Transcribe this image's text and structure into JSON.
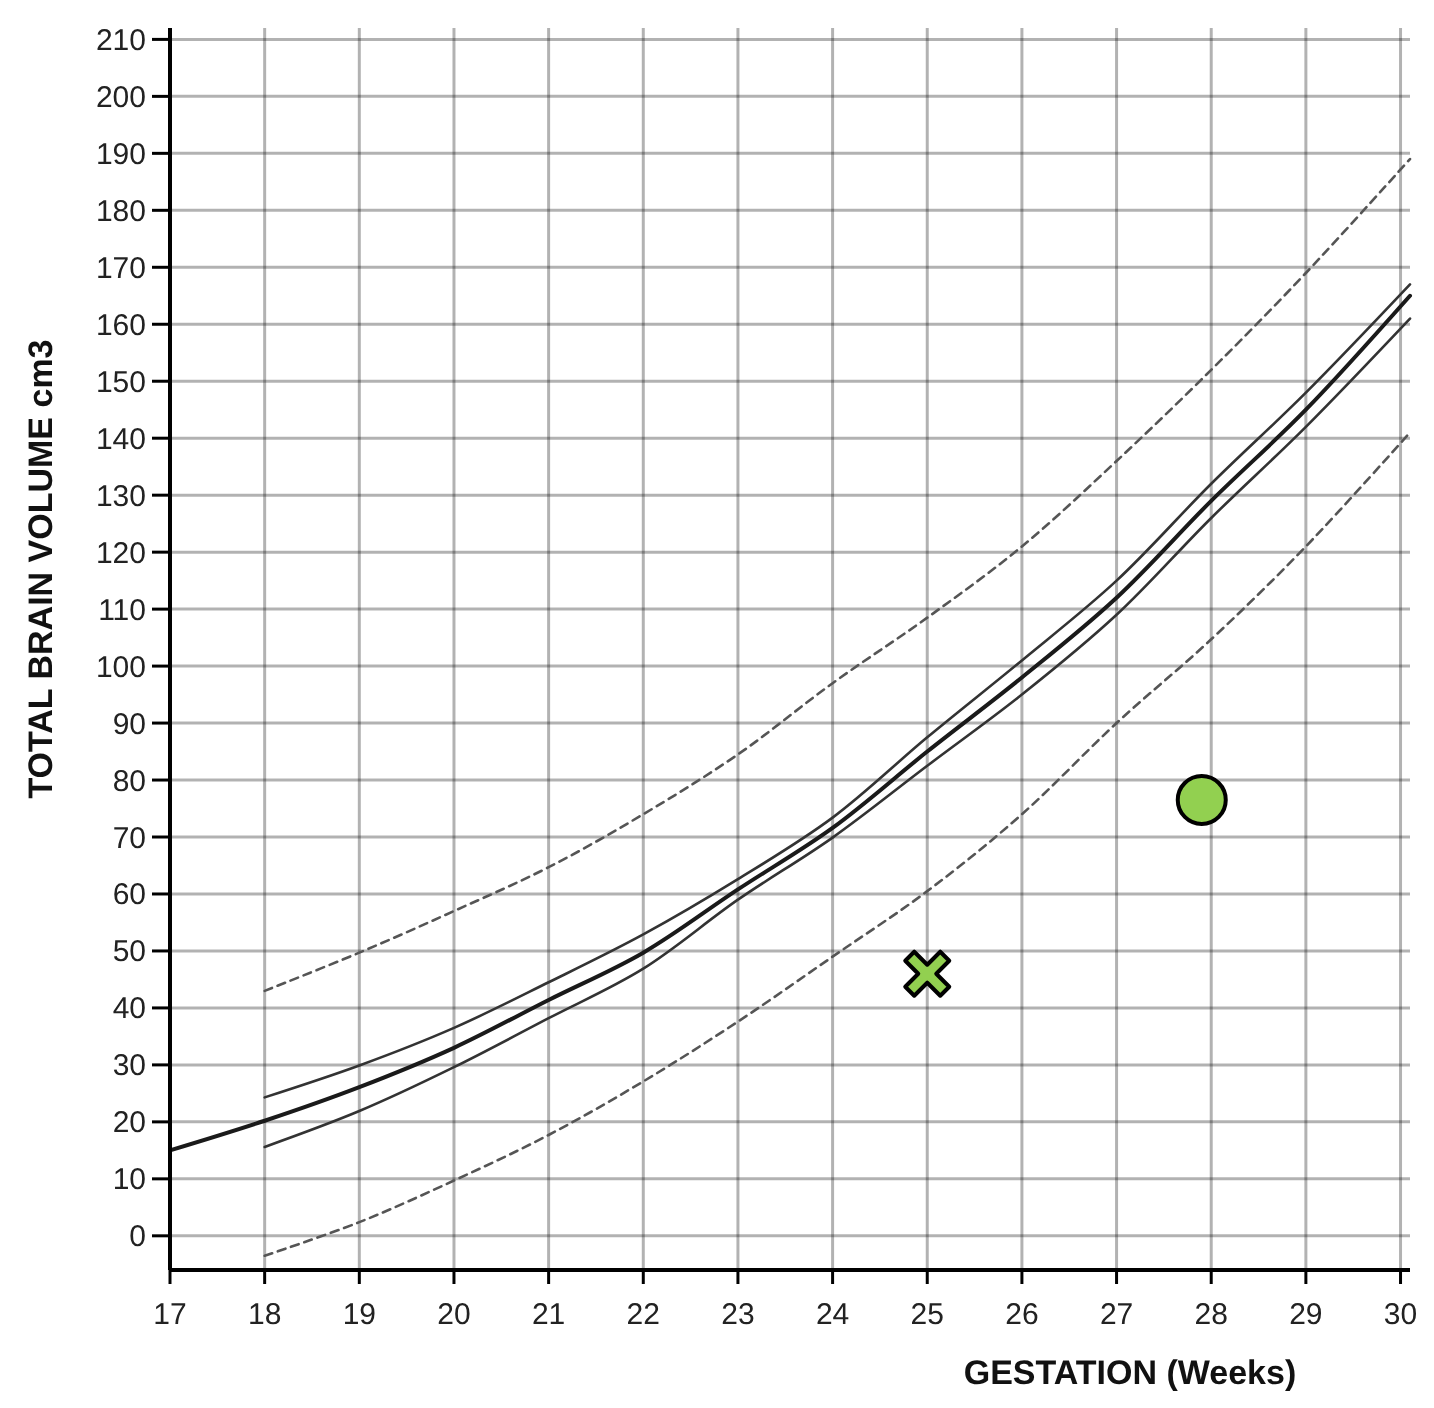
{
  "chart_data": {
    "type": "line",
    "xlabel": "GESTATION (Weeks)",
    "ylabel": "TOTAL BRAIN VOLUME cm3",
    "xlim": [
      17,
      30.1
    ],
    "ylim": [
      -6,
      212
    ],
    "xticks": [
      17,
      18,
      19,
      20,
      21,
      22,
      23,
      24,
      25,
      26,
      27,
      28,
      29,
      30
    ],
    "yticks": [
      0,
      10,
      20,
      30,
      40,
      50,
      60,
      70,
      80,
      90,
      100,
      110,
      120,
      130,
      140,
      150,
      160,
      170,
      180,
      190,
      200,
      210
    ],
    "grid": true,
    "series": [
      {
        "color": "#1a1a1a",
        "line_style": "solid",
        "marker": "none",
        "x": [
          17,
          18,
          19,
          20,
          21,
          22,
          23,
          24,
          25,
          26,
          27,
          28,
          29,
          30.1
        ],
        "values": [
          15,
          20.2,
          26.1,
          33,
          41.4,
          49.7,
          60.8,
          71.6,
          85,
          98,
          112,
          129,
          145,
          165
        ]
      },
      {
        "color": "#333333",
        "line_style": "solid",
        "marker": "none",
        "x": [
          18,
          19,
          20,
          21,
          22,
          23,
          24,
          25,
          26,
          27,
          28,
          29,
          30.1
        ],
        "values": [
          24.3,
          29.9,
          36.5,
          44.5,
          52.9,
          62.6,
          73.4,
          87.5,
          101,
          115,
          132,
          148,
          167
        ]
      },
      {
        "color": "#333333",
        "line_style": "solid",
        "marker": "none",
        "x": [
          18,
          19,
          20,
          21,
          22,
          23,
          24,
          25,
          26,
          27,
          28,
          29,
          30.1
        ],
        "values": [
          15.6,
          21.9,
          29.6,
          38.2,
          46.9,
          59,
          69.9,
          82.5,
          95,
          109,
          126,
          142,
          161
        ]
      },
      {
        "color": "#555555",
        "line_style": "dashed",
        "marker": "none",
        "x": [
          18,
          19,
          20,
          21,
          22,
          23,
          24,
          25,
          26,
          27,
          28,
          29,
          30.1
        ],
        "values": [
          43,
          49.7,
          57,
          64.7,
          74,
          84.5,
          97,
          108.5,
          121,
          136,
          152,
          169,
          189
        ]
      },
      {
        "color": "#555555",
        "line_style": "dashed",
        "marker": "none",
        "x": [
          18,
          19,
          20,
          21,
          22,
          23,
          24,
          25,
          26,
          27,
          28,
          29,
          30.1
        ],
        "values": [
          -3.5,
          2.4,
          9.7,
          17.7,
          27.1,
          37.6,
          49,
          60.5,
          74,
          90,
          104.7,
          121,
          141
        ]
      },
      {
        "type": "scatter",
        "color": "#92d050",
        "marker": "cross",
        "x": [
          25
        ],
        "values": [
          46
        ]
      },
      {
        "type": "scatter",
        "color": "#92d050",
        "marker": "circle",
        "x": [
          27.9
        ],
        "values": [
          76.5
        ]
      }
    ]
  }
}
